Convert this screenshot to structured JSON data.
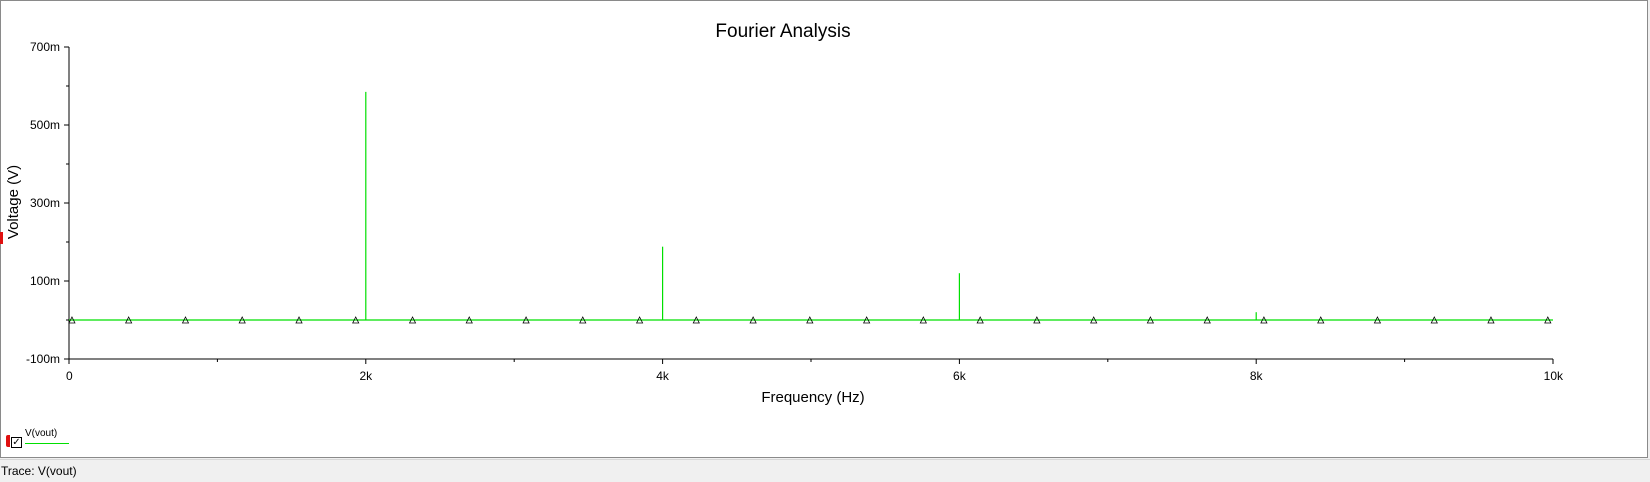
{
  "chart_data": {
    "type": "bar",
    "title": "Fourier Analysis",
    "xlabel": "Frequency (Hz)",
    "ylabel": "Voltage (V)",
    "xlim": [
      0,
      10000
    ],
    "ylim": [
      -100,
      700
    ],
    "x_ticks": [
      {
        "value": 0,
        "label": "0"
      },
      {
        "value": 2000,
        "label": "2k"
      },
      {
        "value": 4000,
        "label": "4k"
      },
      {
        "value": 6000,
        "label": "6k"
      },
      {
        "value": 8000,
        "label": "8k"
      },
      {
        "value": 10000,
        "label": "10k"
      }
    ],
    "y_ticks": [
      {
        "value": 700,
        "label": "700m"
      },
      {
        "value": 500,
        "label": "500m"
      },
      {
        "value": 300,
        "label": "300m"
      },
      {
        "value": 100,
        "label": "100m"
      },
      {
        "value": -100,
        "label": "-100m"
      }
    ],
    "x_minor_step": 1000,
    "y_minor_step": 100,
    "series": [
      {
        "name": "V(vout)",
        "color": "#00e000",
        "baseline": 0,
        "marker": "triangle",
        "marker_x": [
          20,
          402,
          785,
          1167,
          1550,
          1932,
          2315,
          2697,
          3080,
          3462,
          3845,
          4227,
          4610,
          4992,
          5375,
          5757,
          6140,
          6522,
          6905,
          7287,
          7670,
          8052,
          8435,
          8817,
          9200,
          9582,
          9965
        ],
        "spikes": [
          {
            "x": 2000,
            "y": 585
          },
          {
            "x": 4000,
            "y": 188
          },
          {
            "x": 6000,
            "y": 120
          },
          {
            "x": 8000,
            "y": 20
          }
        ]
      }
    ]
  },
  "legend": {
    "label": "V(vout)",
    "checked": "✓"
  },
  "status_bar": {
    "text": "Trace: V(vout)"
  }
}
